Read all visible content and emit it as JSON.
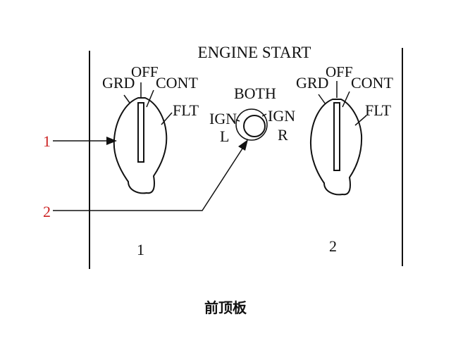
{
  "panel_title": "ENGINE START",
  "left_switch": {
    "positions": {
      "grd": "GRD",
      "off": "OFF",
      "cont": "CONT",
      "flt": "FLT"
    },
    "number": "1"
  },
  "right_switch": {
    "positions": {
      "grd": "GRD",
      "off": "OFF",
      "cont": "CONT",
      "flt": "FLT"
    },
    "number": "2"
  },
  "ignition_selector": {
    "both": "BOTH",
    "ign_left": "IGN",
    "left": "L",
    "ign_right": "IGN",
    "right": "R"
  },
  "callouts": {
    "first": "1",
    "second": "2"
  },
  "caption": "前顶板",
  "colors": {
    "line": "#111111",
    "callout": "#cc2222",
    "background": "#ffffff"
  }
}
